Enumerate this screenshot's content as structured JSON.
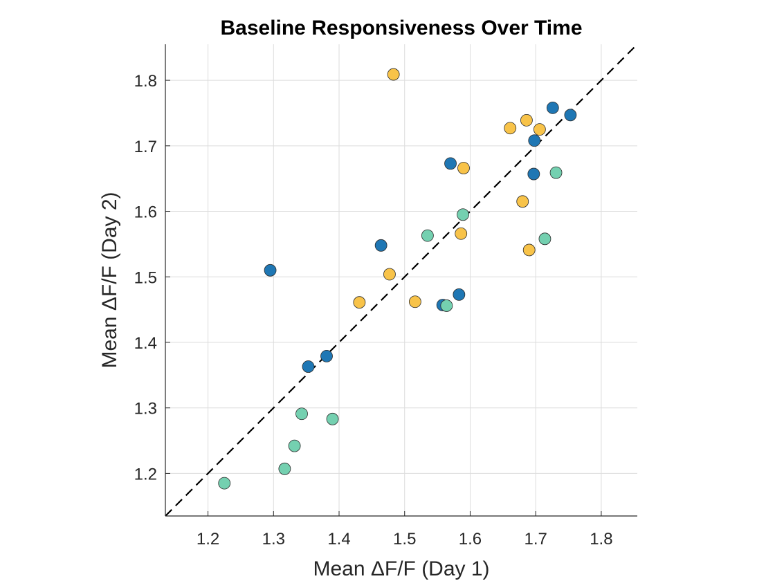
{
  "chart_data": {
    "type": "scatter",
    "title": "Baseline Responsiveness Over Time",
    "xlabel": "Mean ΔF/F (Day 1)",
    "ylabel": "Mean ΔF/F (Day 2)",
    "xlim": [
      1.135,
      1.855
    ],
    "ylim": [
      1.135,
      1.855
    ],
    "xticks": [
      "1.2",
      "1.3",
      "1.4",
      "1.5",
      "1.6",
      "1.7",
      "1.8"
    ],
    "yticks": [
      "1.2",
      "1.3",
      "1.4",
      "1.5",
      "1.6",
      "1.7",
      "1.8"
    ],
    "grid": true,
    "legend": "none",
    "reference_line": {
      "style": "dashed",
      "color": "#000000",
      "from": [
        1.135,
        1.135
      ],
      "to": [
        1.855,
        1.855
      ]
    },
    "series": [
      {
        "color": "#1f77b4",
        "points": [
          [
            1.295,
            1.51
          ],
          [
            1.353,
            1.363
          ],
          [
            1.381,
            1.379
          ],
          [
            1.464,
            1.548
          ],
          [
            1.558,
            1.457
          ],
          [
            1.57,
            1.673
          ],
          [
            1.583,
            1.473
          ],
          [
            1.697,
            1.657
          ],
          [
            1.698,
            1.708
          ],
          [
            1.726,
            1.758
          ],
          [
            1.753,
            1.747
          ]
        ]
      },
      {
        "color": "#f8c349",
        "points": [
          [
            1.431,
            1.461
          ],
          [
            1.477,
            1.504
          ],
          [
            1.483,
            1.809
          ],
          [
            1.516,
            1.462
          ],
          [
            1.586,
            1.566
          ],
          [
            1.59,
            1.666
          ],
          [
            1.661,
            1.727
          ],
          [
            1.68,
            1.615
          ],
          [
            1.686,
            1.739
          ],
          [
            1.69,
            1.541
          ],
          [
            1.706,
            1.725
          ]
        ]
      },
      {
        "color": "#74d0b0",
        "points": [
          [
            1.225,
            1.185
          ],
          [
            1.317,
            1.207
          ],
          [
            1.332,
            1.242
          ],
          [
            1.343,
            1.291
          ],
          [
            1.39,
            1.283
          ],
          [
            1.535,
            1.563
          ],
          [
            1.564,
            1.456
          ],
          [
            1.589,
            1.595
          ],
          [
            1.714,
            1.558
          ],
          [
            1.731,
            1.659
          ]
        ]
      }
    ]
  }
}
